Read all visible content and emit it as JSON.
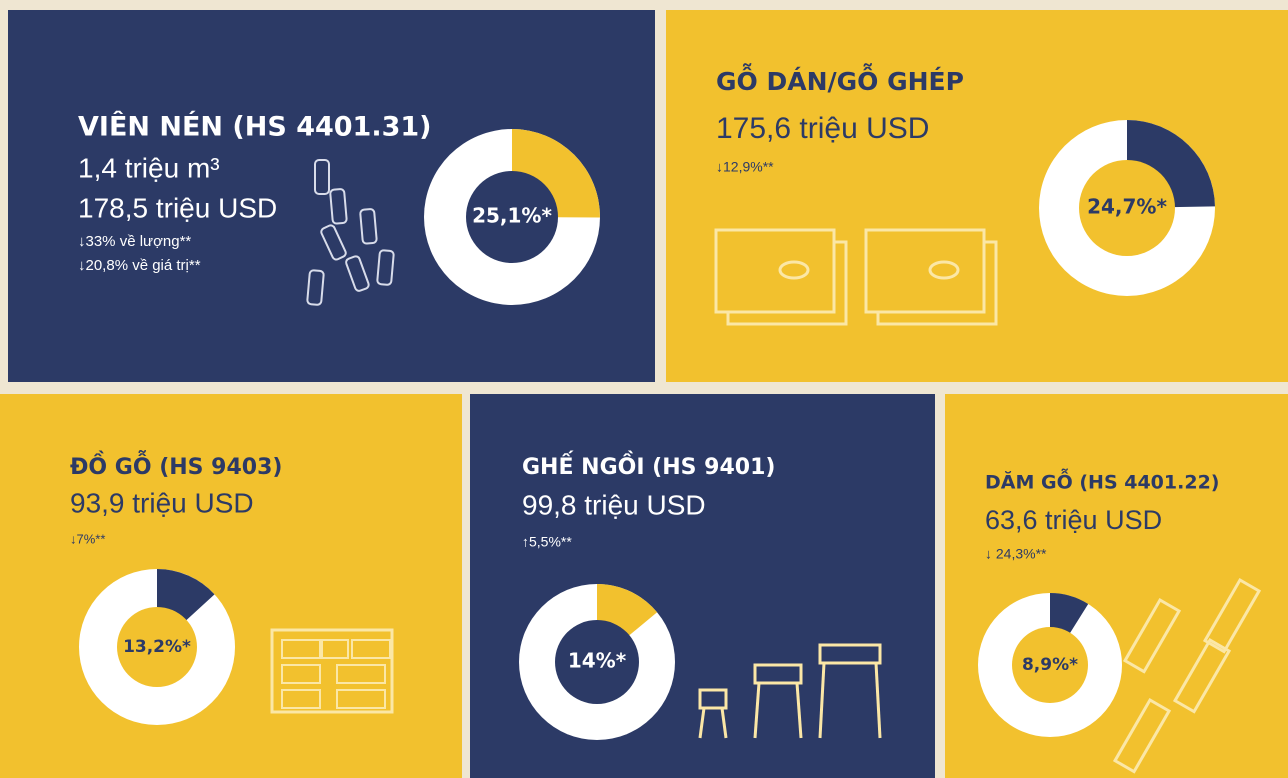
{
  "panels": [
    {
      "title": "VIÊN NÉN (HS 4401.31)",
      "lines": [
        "1,4 triệu m³",
        "178,5 triệu USD"
      ],
      "changes": [
        "↓33% về lượng**",
        "↓20,8% về giá trị**"
      ],
      "share": 25.1,
      "share_label": "25,1%*",
      "background": "#2c3a66",
      "accent": "#f2c12e"
    },
    {
      "title": "GỖ DÁN/GỖ GHÉP",
      "lines": [
        "175,6 triệu USD"
      ],
      "changes": [
        "↓12,9%**"
      ],
      "share": 24.7,
      "share_label": "24,7%*",
      "background": "#f2c12e",
      "accent": "#2c3a66"
    },
    {
      "title": "ĐỒ GỖ (HS 9403)",
      "lines": [
        "93,9 triệu USD"
      ],
      "changes": [
        "↓7%**"
      ],
      "share": 13.2,
      "share_label": "13,2%*",
      "background": "#f2c12e",
      "accent": "#2c3a66"
    },
    {
      "title": "GHẾ NGỒI (HS 9401)",
      "lines": [
        "99,8 triệu USD"
      ],
      "changes": [
        "↑5,5%**"
      ],
      "share": 14,
      "share_label": "14%*",
      "background": "#2c3a66",
      "accent": "#f2c12e"
    },
    {
      "title": "DĂM GỖ (HS 4401.22)",
      "lines": [
        "63,6 triệu USD"
      ],
      "changes": [
        "↓ 24,3%**"
      ],
      "share": 8.9,
      "share_label": "8,9%*",
      "background": "#f2c12e",
      "accent": "#2c3a66"
    }
  ]
}
